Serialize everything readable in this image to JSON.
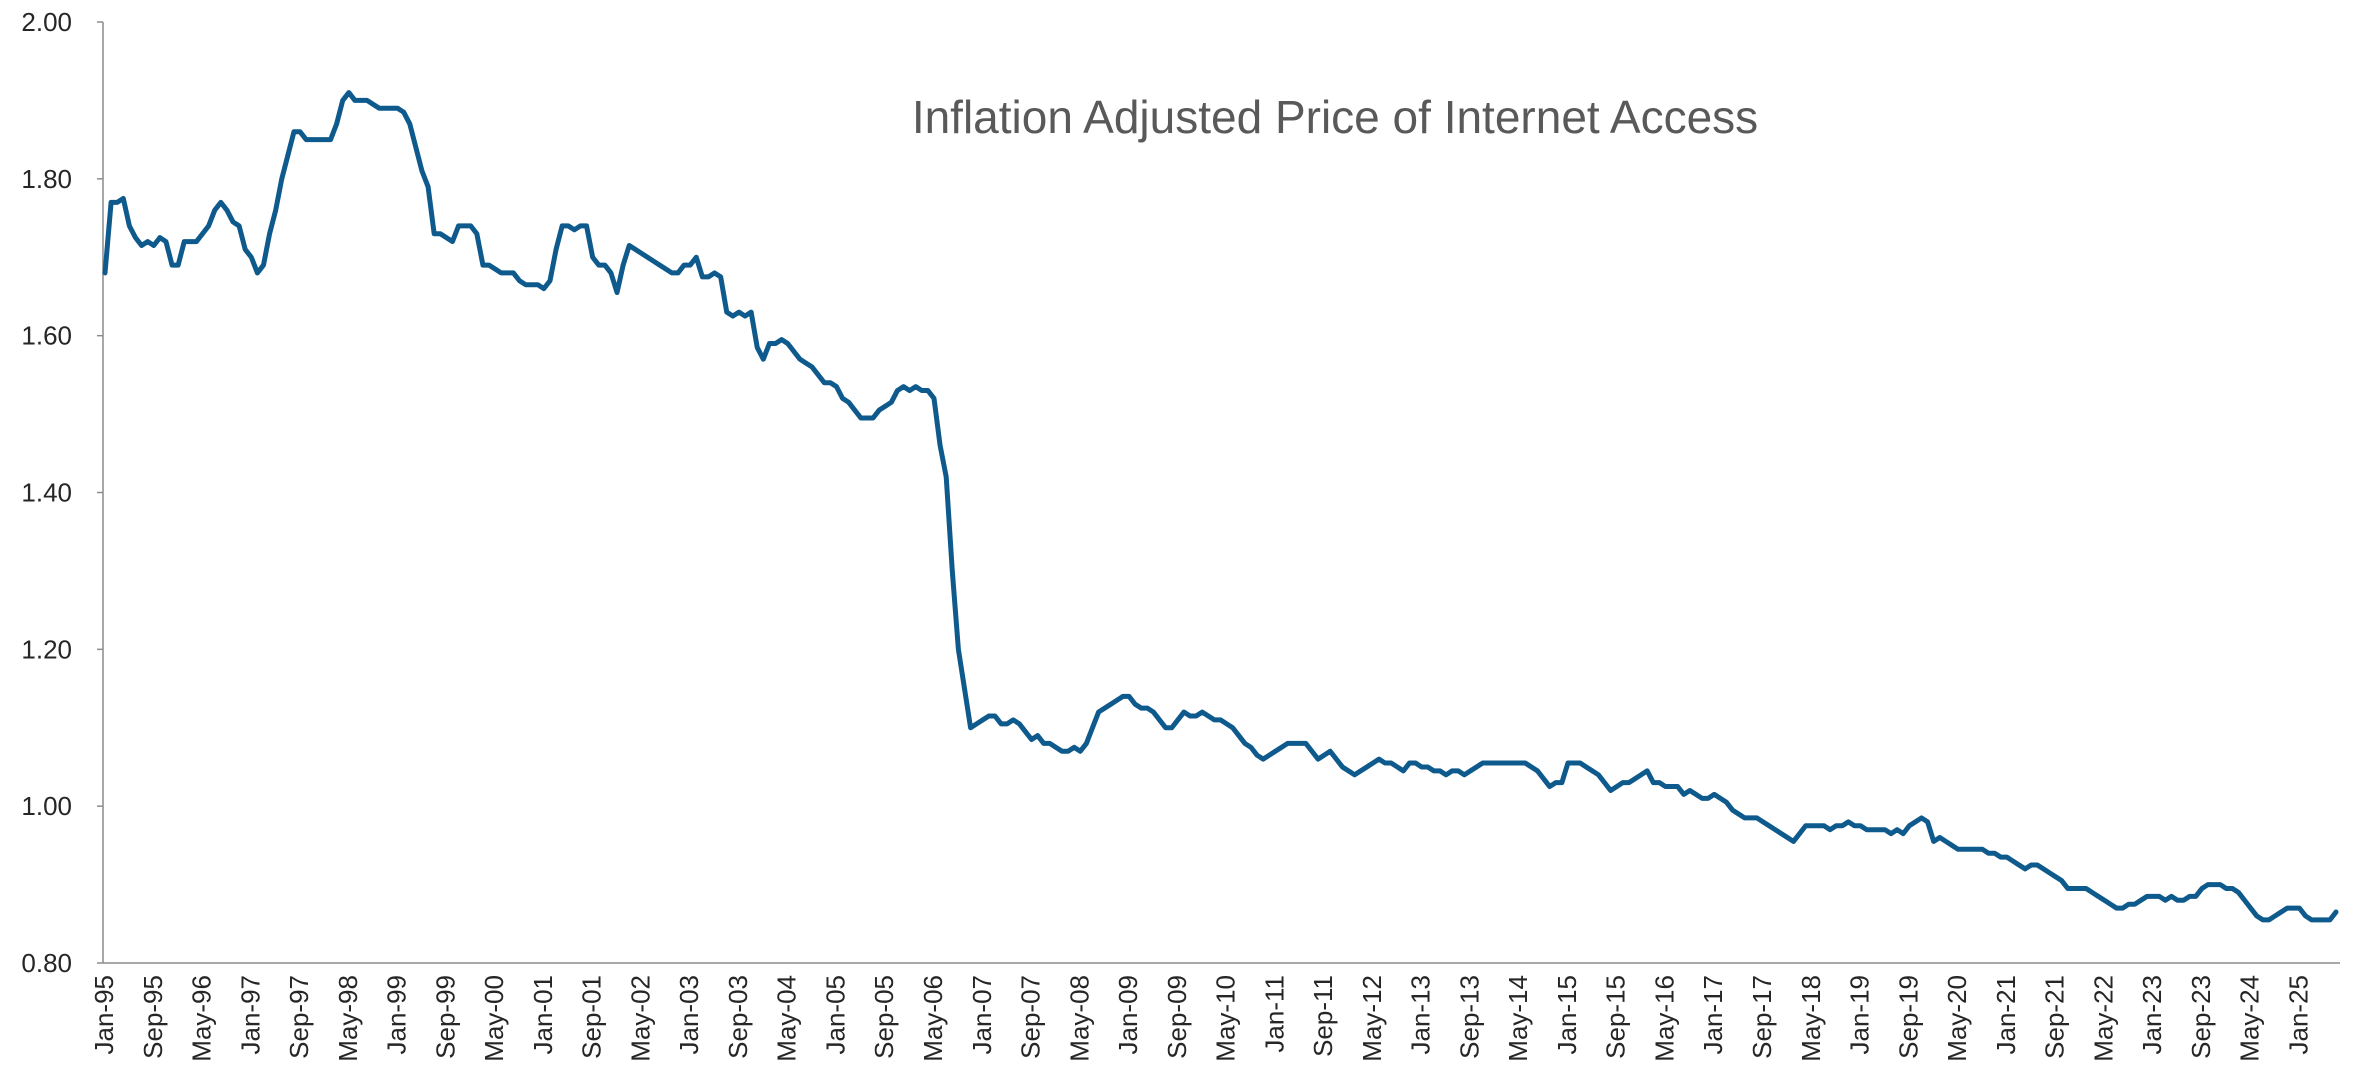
{
  "chart_data": {
    "type": "line",
    "title": "Inflation Adjusted Price of Internet Access",
    "color": "#0f5a8c",
    "ylim": [
      0.8,
      2.0
    ],
    "yticks": [
      {
        "value": 0.8,
        "label": "0.80"
      },
      {
        "value": 1.0,
        "label": "1.00"
      },
      {
        "value": 1.2,
        "label": "1.20"
      },
      {
        "value": 1.4,
        "label": "1.40"
      },
      {
        "value": 1.6,
        "label": "1.60"
      },
      {
        "value": 1.8,
        "label": "1.80"
      },
      {
        "value": 2.0,
        "label": "2.00"
      }
    ],
    "grid": false,
    "categories": [
      "Jan-95",
      null,
      null,
      null,
      null,
      null,
      null,
      null,
      "Sep-95",
      null,
      null,
      null,
      null,
      null,
      null,
      null,
      "May-96",
      null,
      null,
      null,
      null,
      null,
      null,
      null,
      "Jan-97",
      null,
      null,
      null,
      null,
      null,
      null,
      null,
      "Sep-97",
      null,
      null,
      null,
      null,
      null,
      null,
      null,
      "May-98",
      null,
      null,
      null,
      null,
      null,
      null,
      null,
      "Jan-99",
      null,
      null,
      null,
      null,
      null,
      null,
      null,
      "Sep-99",
      null,
      null,
      null,
      null,
      null,
      null,
      null,
      "May-00",
      null,
      null,
      null,
      null,
      null,
      null,
      null,
      "Jan-01",
      null,
      null,
      null,
      null,
      null,
      null,
      null,
      "Sep-01",
      null,
      null,
      null,
      null,
      null,
      null,
      null,
      "May-02",
      null,
      null,
      null,
      null,
      null,
      null,
      null,
      "Jan-03",
      null,
      null,
      null,
      null,
      null,
      null,
      null,
      "Sep-03",
      null,
      null,
      null,
      null,
      null,
      null,
      null,
      "May-04",
      null,
      null,
      null,
      null,
      null,
      null,
      null,
      "Jan-05",
      null,
      null,
      null,
      null,
      null,
      null,
      null,
      "Sep-05",
      null,
      null,
      null,
      null,
      null,
      null,
      null,
      "May-06",
      null,
      null,
      null,
      null,
      null,
      null,
      null,
      "Jan-07",
      null,
      null,
      null,
      null,
      null,
      null,
      null,
      "Sep-07",
      null,
      null,
      null,
      null,
      null,
      null,
      null,
      "May-08",
      null,
      null,
      null,
      null,
      null,
      null,
      null,
      "Jan-09",
      null,
      null,
      null,
      null,
      null,
      null,
      null,
      "Sep-09",
      null,
      null,
      null,
      null,
      null,
      null,
      null,
      "May-10",
      null,
      null,
      null,
      null,
      null,
      null,
      null,
      "Jan-11",
      null,
      null,
      null,
      null,
      null,
      null,
      null,
      "Sep-11",
      null,
      null,
      null,
      null,
      null,
      null,
      null,
      "May-12",
      null,
      null,
      null,
      null,
      null,
      null,
      null,
      "Jan-13",
      null,
      null,
      null,
      null,
      null,
      null,
      null,
      "Sep-13",
      null,
      null,
      null,
      null,
      null,
      null,
      null,
      "May-14",
      null,
      null,
      null,
      null,
      null,
      null,
      null,
      "Jan-15",
      null,
      null,
      null,
      null,
      null,
      null,
      null,
      "Sep-15",
      null,
      null,
      null,
      null,
      null,
      null,
      null,
      "May-16",
      null,
      null,
      null,
      null,
      null,
      null,
      null,
      "Jan-17",
      null,
      null,
      null,
      null,
      null,
      null,
      null,
      "Sep-17",
      null,
      null,
      null,
      null,
      null,
      null,
      null,
      "May-18",
      null,
      null,
      null,
      null,
      null,
      null,
      null,
      "Jan-19",
      null,
      null,
      null,
      null,
      null,
      null,
      null,
      "Sep-19",
      null,
      null,
      null,
      null,
      null,
      null,
      null,
      "May-20",
      null,
      null,
      null,
      null,
      null,
      null,
      null,
      "Jan-21",
      null,
      null,
      null,
      null,
      null,
      null,
      null,
      "Sep-21",
      null,
      null,
      null,
      null,
      null,
      null,
      null,
      "May-22",
      null,
      null,
      null,
      null,
      null,
      null,
      null,
      "Jan-23",
      null,
      null,
      null,
      null,
      null,
      null,
      null,
      "Sep-23",
      null,
      null,
      null,
      null,
      null,
      null,
      null,
      "May-24",
      null,
      null,
      null,
      null,
      null,
      null,
      null,
      "Jan-25",
      null,
      null,
      null,
      null,
      null,
      null
    ],
    "values": [
      1.68,
      1.77,
      1.77,
      1.775,
      1.74,
      1.725,
      1.715,
      1.72,
      1.715,
      1.725,
      1.72,
      1.69,
      1.69,
      1.72,
      1.72,
      1.72,
      1.73,
      1.74,
      1.76,
      1.77,
      1.76,
      1.745,
      1.74,
      1.71,
      1.7,
      1.68,
      1.69,
      1.73,
      1.76,
      1.8,
      1.83,
      1.86,
      1.86,
      1.85,
      1.85,
      1.85,
      1.85,
      1.85,
      1.87,
      1.9,
      1.91,
      1.9,
      1.9,
      1.9,
      1.895,
      1.89,
      1.89,
      1.89,
      1.89,
      1.885,
      1.87,
      1.84,
      1.81,
      1.79,
      1.73,
      1.73,
      1.725,
      1.72,
      1.74,
      1.74,
      1.74,
      1.73,
      1.69,
      1.69,
      1.685,
      1.68,
      1.68,
      1.68,
      1.67,
      1.665,
      1.665,
      1.665,
      1.66,
      1.67,
      1.71,
      1.74,
      1.74,
      1.735,
      1.74,
      1.74,
      1.7,
      1.69,
      1.69,
      1.68,
      1.655,
      1.69,
      1.715,
      1.71,
      1.705,
      1.7,
      1.695,
      1.69,
      1.685,
      1.68,
      1.68,
      1.69,
      1.69,
      1.7,
      1.675,
      1.675,
      1.68,
      1.675,
      1.63,
      1.625,
      1.63,
      1.625,
      1.63,
      1.585,
      1.57,
      1.59,
      1.59,
      1.595,
      1.59,
      1.58,
      1.57,
      1.565,
      1.56,
      1.55,
      1.54,
      1.54,
      1.535,
      1.52,
      1.515,
      1.505,
      1.495,
      1.495,
      1.495,
      1.505,
      1.51,
      1.515,
      1.53,
      1.535,
      1.53,
      1.535,
      1.53,
      1.53,
      1.52,
      1.46,
      1.42,
      1.3,
      1.2,
      1.15,
      1.1,
      1.105,
      1.11,
      1.115,
      1.115,
      1.105,
      1.105,
      1.11,
      1.105,
      1.095,
      1.085,
      1.09,
      1.08,
      1.08,
      1.075,
      1.07,
      1.07,
      1.075,
      1.07,
      1.08,
      1.1,
      1.12,
      1.125,
      1.13,
      1.135,
      1.14,
      1.14,
      1.13,
      1.125,
      1.125,
      1.12,
      1.11,
      1.1,
      1.1,
      1.11,
      1.12,
      1.115,
      1.115,
      1.12,
      1.115,
      1.11,
      1.11,
      1.105,
      1.1,
      1.09,
      1.08,
      1.075,
      1.065,
      1.06,
      1.065,
      1.07,
      1.075,
      1.08,
      1.08,
      1.08,
      1.08,
      1.07,
      1.06,
      1.065,
      1.07,
      1.06,
      1.05,
      1.045,
      1.04,
      1.045,
      1.05,
      1.055,
      1.06,
      1.055,
      1.055,
      1.05,
      1.045,
      1.055,
      1.055,
      1.05,
      1.05,
      1.045,
      1.045,
      1.04,
      1.045,
      1.045,
      1.04,
      1.045,
      1.05,
      1.055,
      1.055,
      1.055,
      1.055,
      1.055,
      1.055,
      1.055,
      1.055,
      1.05,
      1.045,
      1.035,
      1.025,
      1.03,
      1.03,
      1.055,
      1.055,
      1.055,
      1.05,
      1.045,
      1.04,
      1.03,
      1.02,
      1.025,
      1.03,
      1.03,
      1.035,
      1.04,
      1.045,
      1.03,
      1.03,
      1.025,
      1.025,
      1.025,
      1.015,
      1.02,
      1.015,
      1.01,
      1.01,
      1.015,
      1.01,
      1.005,
      0.995,
      0.99,
      0.985,
      0.985,
      0.985,
      0.98,
      0.975,
      0.97,
      0.965,
      0.96,
      0.955,
      0.965,
      0.975,
      0.975,
      0.975,
      0.975,
      0.97,
      0.975,
      0.975,
      0.98,
      0.975,
      0.975,
      0.97,
      0.97,
      0.97,
      0.97,
      0.965,
      0.97,
      0.965,
      0.975,
      0.98,
      0.985,
      0.98,
      0.955,
      0.96,
      0.955,
      0.95,
      0.945,
      0.945,
      0.945,
      0.945,
      0.945,
      0.94,
      0.94,
      0.935,
      0.935,
      0.93,
      0.925,
      0.92,
      0.925,
      0.925,
      0.92,
      0.915,
      0.91,
      0.905,
      0.895,
      0.895,
      0.895,
      0.895,
      0.89,
      0.885,
      0.88,
      0.875,
      0.87,
      0.87,
      0.875,
      0.875,
      0.88,
      0.885,
      0.885,
      0.885,
      0.88,
      0.885,
      0.88,
      0.88,
      0.885,
      0.885,
      0.895,
      0.9,
      0.9,
      0.9,
      0.895,
      0.895,
      0.89,
      0.88,
      0.87,
      0.86,
      0.855,
      0.855,
      0.86,
      0.865,
      0.87,
      0.87,
      0.87,
      0.86,
      0.855,
      0.855,
      0.855,
      0.855,
      0.865
    ]
  }
}
